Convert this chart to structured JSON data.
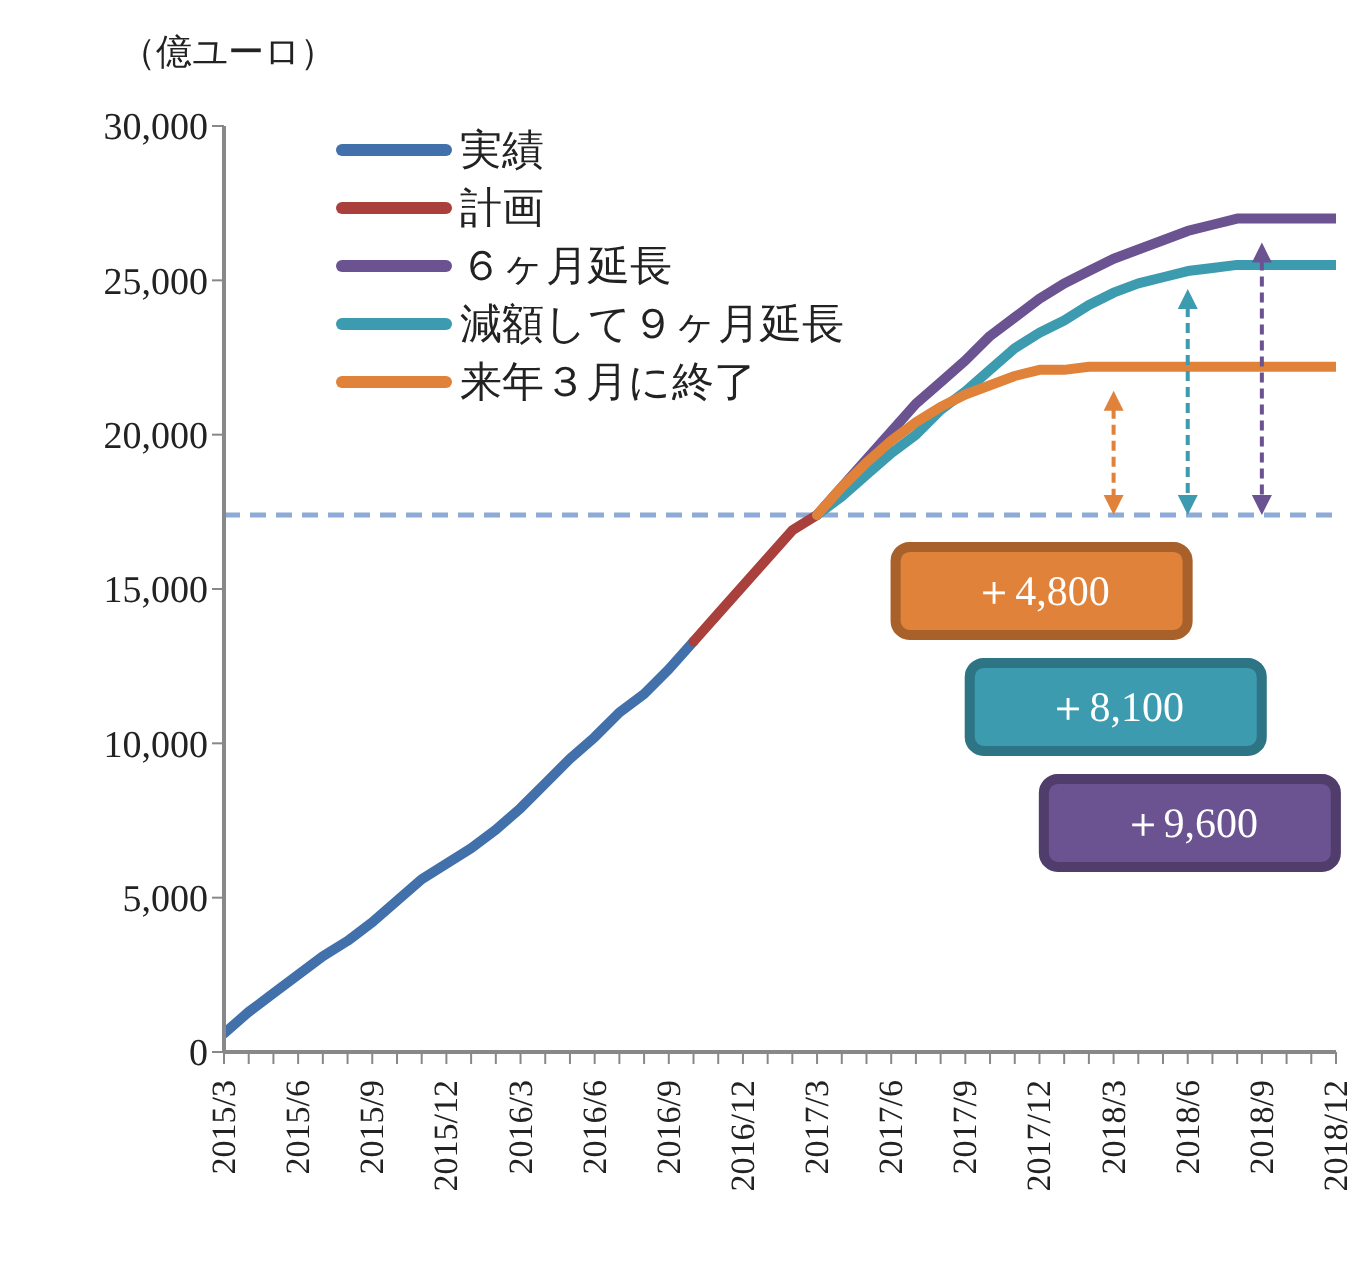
{
  "chart_data": {
    "type": "line",
    "ylabel": "（億ユーロ）",
    "categories": [
      "2015/3",
      null,
      null,
      "2015/6",
      null,
      null,
      "2015/9",
      null,
      null,
      "2015/12",
      null,
      null,
      "2016/3",
      null,
      null,
      "2016/6",
      null,
      null,
      "2016/9",
      null,
      null,
      "2016/12",
      null,
      null,
      "2017/3",
      null,
      null,
      "2017/6",
      null,
      null,
      "2017/9",
      null,
      null,
      "2017/12",
      null,
      null,
      "2018/3",
      null,
      null,
      "2018/6",
      null,
      null,
      "2018/9",
      null,
      null,
      "2018/12"
    ],
    "series": [
      {
        "name": "実績",
        "color": "#4170aa",
        "values": [
          600,
          1300,
          1900,
          2500,
          3100,
          3600,
          4200,
          4900,
          5600,
          6100,
          6600,
          7200,
          7900,
          8700,
          9500,
          10200,
          11000,
          11600,
          12400,
          13300,
          null,
          null,
          null,
          null,
          null,
          null,
          null,
          null,
          null,
          null,
          null,
          null,
          null,
          null,
          null,
          null,
          null,
          null,
          null,
          null,
          null,
          null,
          null,
          null,
          null,
          null
        ]
      },
      {
        "name": "計画",
        "color": "#a9403c",
        "values": [
          null,
          null,
          null,
          null,
          null,
          null,
          null,
          null,
          null,
          null,
          null,
          null,
          null,
          null,
          null,
          null,
          null,
          null,
          null,
          13300,
          14200,
          15100,
          16000,
          16900,
          17400,
          null,
          null,
          null,
          null,
          null,
          null,
          null,
          null,
          null,
          null,
          null,
          null,
          null,
          null,
          null,
          null,
          null,
          null,
          null,
          null,
          null
        ]
      },
      {
        "name": "６ヶ月延長",
        "color": "#6b5290",
        "values": [
          null,
          null,
          null,
          null,
          null,
          null,
          null,
          null,
          null,
          null,
          null,
          null,
          null,
          null,
          null,
          null,
          null,
          null,
          null,
          null,
          null,
          null,
          null,
          null,
          17400,
          18300,
          19200,
          20100,
          21000,
          21700,
          22400,
          23200,
          23800,
          24400,
          24900,
          25300,
          25700,
          26000,
          26300,
          26600,
          26800,
          27000,
          27000,
          27000,
          27000,
          27000
        ]
      },
      {
        "name": "減額して９ヶ月延長",
        "color": "#3d9bb0",
        "values": [
          null,
          null,
          null,
          null,
          null,
          null,
          null,
          null,
          null,
          null,
          null,
          null,
          null,
          null,
          null,
          null,
          null,
          null,
          null,
          null,
          null,
          null,
          null,
          null,
          17400,
          18000,
          18700,
          19400,
          20000,
          20800,
          21400,
          22100,
          22800,
          23300,
          23700,
          24200,
          24600,
          24900,
          25100,
          25300,
          25400,
          25500,
          25500,
          25500,
          25500,
          25500
        ]
      },
      {
        "name": "来年３月に終了",
        "color": "#e0823a",
        "values": [
          null,
          null,
          null,
          null,
          null,
          null,
          null,
          null,
          null,
          null,
          null,
          null,
          null,
          null,
          null,
          null,
          null,
          null,
          null,
          null,
          null,
          null,
          null,
          null,
          17400,
          18300,
          19100,
          19800,
          20400,
          20900,
          21300,
          21600,
          21900,
          22100,
          22100,
          22200,
          22200,
          22200,
          22200,
          22200,
          22200,
          22200,
          22200,
          22200,
          22200,
          22200
        ]
      }
    ],
    "ylim": [
      0,
      30000
    ],
    "yticks": [
      {
        "value": 0,
        "label": "0"
      },
      {
        "value": 5000,
        "label": "5,000"
      },
      {
        "value": 10000,
        "label": "10,000"
      },
      {
        "value": 15000,
        "label": "15,000"
      },
      {
        "value": 20000,
        "label": "20,000"
      },
      {
        "value": 25000,
        "label": "25,000"
      },
      {
        "value": 30000,
        "label": "30,000"
      }
    ],
    "ref_lines": [
      {
        "axis": "y",
        "value": 17400,
        "color": "#8eaad6",
        "line_style": "dashed"
      }
    ],
    "annotations": [
      "＋4,800",
      "＋8,100",
      "＋9,600"
    ],
    "legend": "top left",
    "grid": false,
    "marker": "none",
    "line_style": "solid"
  }
}
